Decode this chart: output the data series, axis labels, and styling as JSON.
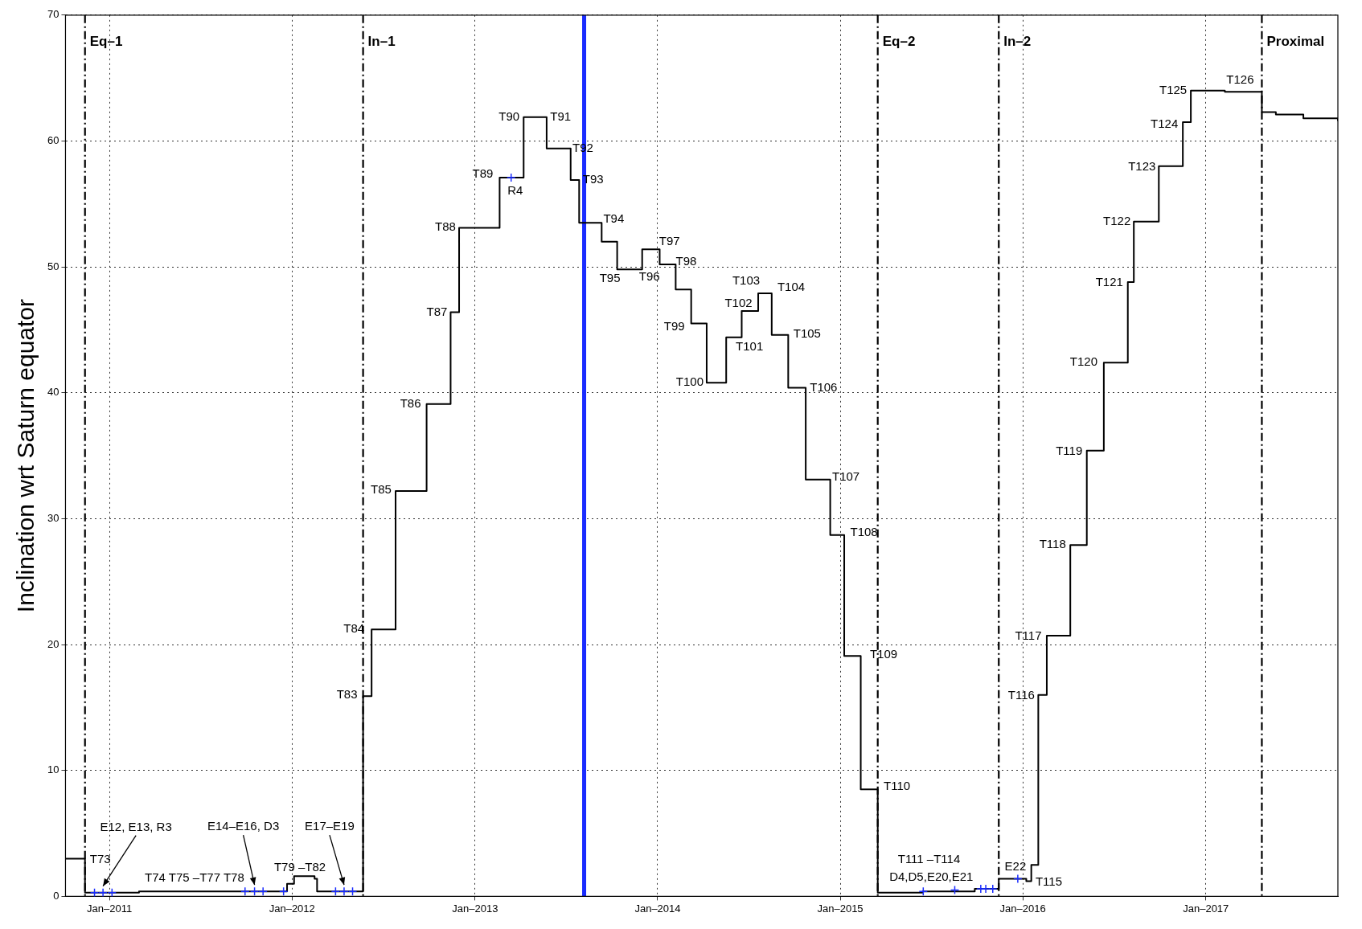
{
  "chart_data": {
    "type": "step",
    "ylabel": "Inclination wrt Saturn equator",
    "xlim": [
      "2010-10-05",
      "2017-09-22"
    ],
    "xticks": [
      {
        "value": "2011-01-01",
        "label": "Jan–2011"
      },
      {
        "value": "2012-01-01",
        "label": "Jan–2012"
      },
      {
        "value": "2013-01-01",
        "label": "Jan–2013"
      },
      {
        "value": "2014-01-01",
        "label": "Jan–2014"
      },
      {
        "value": "2015-01-01",
        "label": "Jan–2015"
      },
      {
        "value": "2016-01-01",
        "label": "Jan–2016"
      },
      {
        "value": "2017-01-01",
        "label": "Jan–2017"
      }
    ],
    "ylim": [
      0,
      70
    ],
    "yticks": [
      0,
      10,
      20,
      30,
      40,
      50,
      60,
      70
    ],
    "grid": true,
    "legend": false,
    "series": [
      {
        "color": "#000000",
        "x": [
          "2010-10-05",
          "2010-11-13",
          "2011-03-01",
          "2011-12-22",
          "2012-01-05",
          "2012-02-15",
          "2012-02-20",
          "2012-05-22",
          "2012-06-08",
          "2012-07-26",
          "2012-09-26",
          "2012-11-13",
          "2012-11-30",
          "2013-02-19",
          "2013-04-08",
          "2013-05-24",
          "2013-07-11",
          "2013-07-28",
          "2013-09-11",
          "2013-10-12",
          "2013-12-01",
          "2014-01-05",
          "2014-02-06",
          "2014-03-09",
          "2014-04-09",
          "2014-05-18",
          "2014-06-18",
          "2014-07-21",
          "2014-08-17",
          "2014-09-19",
          "2014-10-24",
          "2014-12-12",
          "2015-01-09",
          "2015-02-11",
          "2015-03-17",
          "2015-06-15",
          "2015-09-27",
          "2015-11-14",
          "2016-01-08",
          "2016-01-18",
          "2016-02-01",
          "2016-02-18",
          "2016-04-05",
          "2016-05-08",
          "2016-06-11",
          "2016-07-29",
          "2016-08-10",
          "2016-09-29",
          "2016-11-16",
          "2016-12-02",
          "2017-02-08",
          "2017-04-23",
          "2017-05-21",
          "2017-07-15",
          "2017-09-22"
        ],
        "values": [
          3.0,
          0.3,
          0.4,
          1.0,
          1.6,
          1.4,
          0.4,
          15.9,
          21.2,
          32.2,
          39.1,
          46.4,
          53.1,
          57.1,
          61.9,
          59.4,
          56.9,
          53.5,
          52.0,
          49.8,
          51.4,
          50.2,
          48.2,
          45.5,
          40.8,
          44.4,
          46.5,
          47.9,
          44.6,
          40.4,
          33.1,
          28.7,
          19.1,
          8.5,
          0.3,
          0.4,
          0.6,
          1.4,
          1.2,
          2.5,
          16.0,
          20.7,
          27.9,
          35.4,
          42.4,
          48.8,
          53.6,
          58.0,
          61.5,
          64.0,
          63.9,
          62.3,
          62.1,
          61.8,
          61.6
        ]
      },
      {
        "type": "scatter",
        "marker": "cross",
        "color": "#1a2cff",
        "x": [
          "2010-12-02",
          "2010-12-19",
          "2011-01-06",
          "2011-09-29",
          "2011-10-18",
          "2011-11-04",
          "2011-12-15",
          "2012-03-28",
          "2012-04-14",
          "2012-05-01",
          "2013-03-14",
          "2015-06-16",
          "2015-08-18",
          "2015-10-09",
          "2015-10-19",
          "2015-11-02",
          "2015-12-22"
        ],
        "values": [
          0.3,
          0.3,
          0.3,
          0.4,
          0.4,
          0.4,
          0.4,
          0.4,
          0.4,
          0.4,
          57.1,
          0.4,
          0.5,
          0.6,
          0.6,
          0.6,
          1.4
        ]
      }
    ],
    "ref_lines": [
      {
        "axis": "x",
        "value": "2010-11-13",
        "color": "#000000",
        "line_style": "dashed",
        "label": "Eq–1"
      },
      {
        "axis": "x",
        "value": "2012-05-22",
        "color": "#000000",
        "line_style": "dashed",
        "label": "In–1"
      },
      {
        "axis": "x",
        "value": "2015-03-17",
        "color": "#000000",
        "line_style": "dashed",
        "label": "Eq–2"
      },
      {
        "axis": "x",
        "value": "2015-11-14",
        "color": "#000000",
        "line_style": "dashed",
        "label": "In–2"
      },
      {
        "axis": "x",
        "value": "2017-04-23",
        "color": "#000000",
        "line_style": "dashed",
        "label": "Proximal"
      },
      {
        "axis": "x",
        "value": "2013-08-07",
        "color": "#1a2cff",
        "line_style": "solid"
      }
    ],
    "annotations": [
      {
        "text": "T73",
        "x": "2010-11-13",
        "y": 0.3
      },
      {
        "text": "E12, E13, R3",
        "x": "2010-12-19",
        "y": 0.3
      },
      {
        "text": "T74 T75 –T77 T78",
        "x": "2011-03-01",
        "y": 0.4
      },
      {
        "text": "E14–E16, D3",
        "x": "2011-10-18",
        "y": 0.4
      },
      {
        "text": "T79 –T82",
        "x": "2011-12-22",
        "y": 1.0
      },
      {
        "text": "E17–E19",
        "x": "2012-04-14",
        "y": 0.4
      },
      {
        "text": "T83",
        "x": "2012-05-22",
        "y": 15.9
      },
      {
        "text": "T84",
        "x": "2012-06-08",
        "y": 21.2
      },
      {
        "text": "T85",
        "x": "2012-07-26",
        "y": 32.2
      },
      {
        "text": "T86",
        "x": "2012-09-26",
        "y": 39.1
      },
      {
        "text": "T87",
        "x": "2012-11-13",
        "y": 46.4
      },
      {
        "text": "T88",
        "x": "2012-11-30",
        "y": 53.1
      },
      {
        "text": "T89",
        "x": "2013-02-19",
        "y": 57.1
      },
      {
        "text": "R4",
        "x": "2013-03-14",
        "y": 57.1
      },
      {
        "text": "T90",
        "x": "2013-04-08",
        "y": 61.9
      },
      {
        "text": "T91",
        "x": "2013-04-08",
        "y": 61.9
      },
      {
        "text": "T92",
        "x": "2013-05-24",
        "y": 59.4
      },
      {
        "text": "T93",
        "x": "2013-07-11",
        "y": 56.9
      },
      {
        "text": "T94",
        "x": "2013-07-28",
        "y": 53.5
      },
      {
        "text": "T95",
        "x": "2013-10-12",
        "y": 49.8
      },
      {
        "text": "T96",
        "x": "2013-12-01",
        "y": 51.4
      },
      {
        "text": "T97",
        "x": "2013-12-01",
        "y": 51.4
      },
      {
        "text": "T98",
        "x": "2014-01-05",
        "y": 50.2
      },
      {
        "text": "T99",
        "x": "2014-03-09",
        "y": 45.5
      },
      {
        "text": "T100",
        "x": "2014-04-09",
        "y": 40.8
      },
      {
        "text": "T101",
        "x": "2014-05-18",
        "y": 44.4
      },
      {
        "text": "T102",
        "x": "2014-06-18",
        "y": 46.5
      },
      {
        "text": "T103",
        "x": "2014-07-21",
        "y": 47.9
      },
      {
        "text": "T104",
        "x": "2014-07-21",
        "y": 47.9
      },
      {
        "text": "T105",
        "x": "2014-08-17",
        "y": 44.6
      },
      {
        "text": "T106",
        "x": "2014-09-19",
        "y": 40.4
      },
      {
        "text": "T107",
        "x": "2014-10-24",
        "y": 33.1
      },
      {
        "text": "T108",
        "x": "2014-12-12",
        "y": 28.7
      },
      {
        "text": "T109",
        "x": "2015-01-09",
        "y": 19.1
      },
      {
        "text": "T110",
        "x": "2015-02-11",
        "y": 8.5
      },
      {
        "text": "T111 –T114",
        "x": "2015-08-18",
        "y": 0.5
      },
      {
        "text": "D4,D5,E20,E21",
        "x": "2015-06-16",
        "y": 0.4
      },
      {
        "text": "E22",
        "x": "2015-12-22",
        "y": 1.4
      },
      {
        "text": "T115",
        "x": "2016-01-08",
        "y": 1.2
      },
      {
        "text": "T116",
        "x": "2016-02-01",
        "y": 16.0
      },
      {
        "text": "T117",
        "x": "2016-02-18",
        "y": 20.7
      },
      {
        "text": "T118",
        "x": "2016-04-05",
        "y": 27.9
      },
      {
        "text": "T119",
        "x": "2016-05-08",
        "y": 35.4
      },
      {
        "text": "T120",
        "x": "2016-06-11",
        "y": 42.4
      },
      {
        "text": "T121",
        "x": "2016-07-29",
        "y": 48.8
      },
      {
        "text": "T122",
        "x": "2016-08-10",
        "y": 53.6
      },
      {
        "text": "T123",
        "x": "2016-09-29",
        "y": 58.0
      },
      {
        "text": "T124",
        "x": "2016-11-16",
        "y": 61.5
      },
      {
        "text": "T125",
        "x": "2016-12-02",
        "y": 64.0
      },
      {
        "text": "T126",
        "x": "2017-02-08",
        "y": 63.9
      }
    ]
  }
}
